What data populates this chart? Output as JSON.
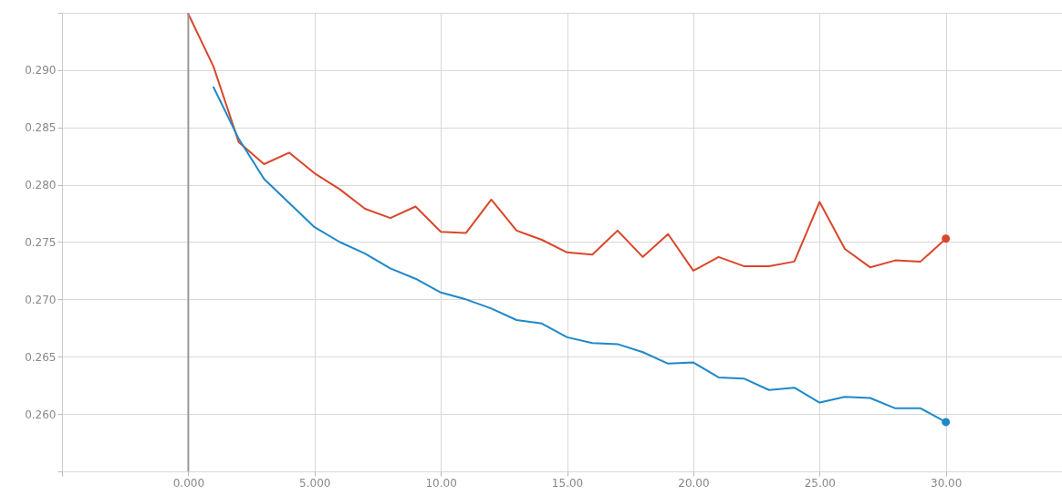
{
  "chart_data": {
    "type": "line",
    "xlim": [
      -5,
      34.6
    ],
    "ylim": [
      0.255,
      0.295
    ],
    "xticks": [
      {
        "value": -5,
        "label": null
      },
      {
        "value": 0,
        "label": "0.000"
      },
      {
        "value": 5,
        "label": "5.000"
      },
      {
        "value": 10,
        "label": "10.00"
      },
      {
        "value": 15,
        "label": "15.00"
      },
      {
        "value": 20,
        "label": "20.00"
      },
      {
        "value": 25,
        "label": "25.00"
      },
      {
        "value": 30,
        "label": "30.00"
      }
    ],
    "yticks": [
      {
        "value": 0.255,
        "label": null
      },
      {
        "value": 0.26,
        "label": "0.260"
      },
      {
        "value": 0.265,
        "label": "0.265"
      },
      {
        "value": 0.27,
        "label": "0.270"
      },
      {
        "value": 0.275,
        "label": "0.275"
      },
      {
        "value": 0.28,
        "label": "0.280"
      },
      {
        "value": 0.285,
        "label": "0.285"
      },
      {
        "value": 0.29,
        "label": "0.290"
      },
      {
        "value": 0.295,
        "label": null
      }
    ],
    "grid": true,
    "ref_lines": [
      {
        "axis": "x",
        "value": 0,
        "color": "#999999"
      }
    ],
    "series": [
      {
        "color": "#d9472b",
        "x": [
          0,
          1,
          2,
          3,
          4,
          5,
          6,
          7,
          8,
          9,
          10,
          11,
          12,
          13,
          14,
          15,
          16,
          17,
          18,
          19,
          20,
          21,
          22,
          23,
          24,
          25,
          26,
          27,
          28,
          29,
          30
        ],
        "values": [
          0.2949,
          0.2903,
          0.2837,
          0.2818,
          0.2828,
          0.281,
          0.2796,
          0.2779,
          0.2771,
          0.2781,
          0.2759,
          0.2758,
          0.2787,
          0.276,
          0.2752,
          0.2741,
          0.2739,
          0.276,
          0.2737,
          0.2757,
          0.2725,
          0.2737,
          0.2729,
          0.2729,
          0.2733,
          0.2785,
          0.2744,
          0.2728,
          0.2734,
          0.2733,
          0.2753
        ]
      },
      {
        "color": "#1f88c9",
        "x": [
          1,
          2,
          3,
          4,
          5,
          6,
          7,
          8,
          9,
          10,
          11,
          12,
          13,
          14,
          15,
          16,
          17,
          18,
          19,
          20,
          21,
          22,
          23,
          24,
          25,
          26,
          27,
          28,
          29,
          30
        ],
        "values": [
          0.2885,
          0.284,
          0.2805,
          0.2784,
          0.2763,
          0.275,
          0.274,
          0.2727,
          0.2718,
          0.2706,
          0.27,
          0.2692,
          0.2682,
          0.2679,
          0.2667,
          0.2662,
          0.2661,
          0.2654,
          0.2644,
          0.2645,
          0.2632,
          0.2631,
          0.2621,
          0.2623,
          0.261,
          0.2615,
          0.2614,
          0.2605,
          0.2605,
          0.2593
        ]
      },
      {
        "type": "scatter",
        "color": "#d9472b",
        "x": [
          30
        ],
        "values": [
          0.2753
        ]
      },
      {
        "type": "scatter",
        "color": "#1f88c9",
        "x": [
          30
        ],
        "values": [
          0.2593
        ]
      }
    ]
  }
}
